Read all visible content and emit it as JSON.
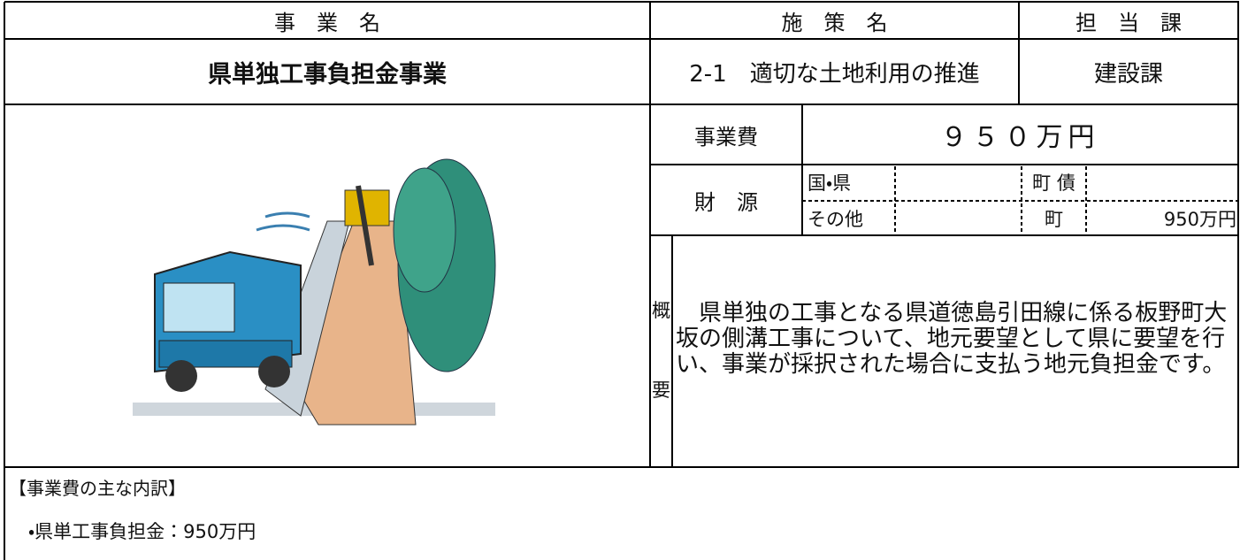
{
  "header": {
    "business_label": "事　業　名",
    "policy_label": "施　策　名",
    "department_label": "担　当　課"
  },
  "main": {
    "business_name": "県単独工事負担金事業",
    "policy": "2-1　適切な土地利用の推進",
    "department": "建設課"
  },
  "cost": {
    "label": "事業費",
    "value": "９５０万円"
  },
  "funding": {
    "label": "財　源",
    "national_prefectural": "国・県",
    "town_bond": "町 債",
    "other": "その他",
    "town": "町",
    "town_amount": "950万円"
  },
  "summary": {
    "label_top": "概",
    "label_bottom": "要",
    "text": "　県単独の工事となる県道徳島引田線に係る板野町大坂の側溝工事について、地元要望として県に要望を行い、事業が採択された場合に支払う地元負担金です。"
  },
  "breakdown": {
    "title": "【事業費の主な内訳】",
    "items": [
      "・県単工事負担金：950万円"
    ]
  }
}
